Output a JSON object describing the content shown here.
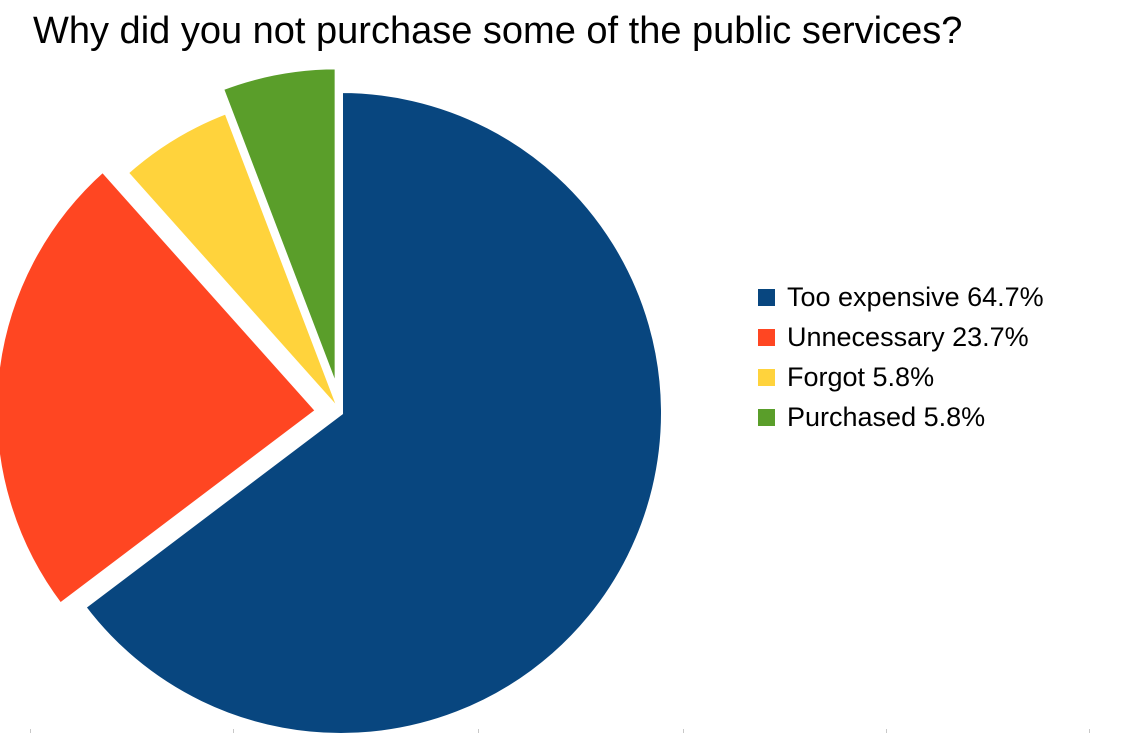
{
  "chart_data": {
    "type": "pie",
    "title": "Why did you not purchase some of the public services?",
    "slices": [
      {
        "label": "Too expensive 64.7%",
        "value": 64.7,
        "color": "#08467f",
        "exploded": false
      },
      {
        "label": "Unnecessary 23.7%",
        "value": 23.7,
        "color": "#ff4622",
        "exploded": true
      },
      {
        "label": "Forgot 5.8%",
        "value": 5.8,
        "color": "#ffd33c",
        "exploded": false
      },
      {
        "label": "Purchased 5.8%",
        "value": 5.8,
        "color": "#5a9e2a",
        "exploded": true
      }
    ],
    "legend_position": "right"
  }
}
